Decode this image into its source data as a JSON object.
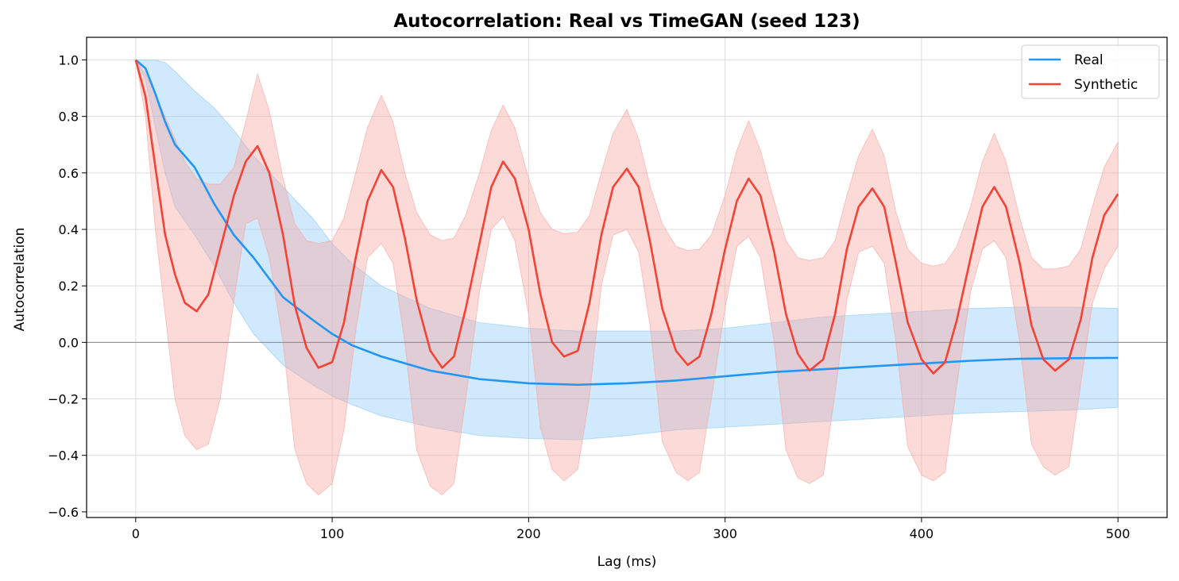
{
  "chart_data": {
    "type": "line",
    "title": "Autocorrelation: Real vs TimeGAN (seed 123)",
    "xlabel": "Lag (ms)",
    "ylabel": "Autocorrelation",
    "xlim": [
      -25,
      525
    ],
    "ylim": [
      -0.62,
      1.08
    ],
    "xticks": [
      0,
      100,
      200,
      300,
      400,
      500
    ],
    "yticks": [
      -0.6,
      -0.4,
      -0.2,
      0.0,
      0.2,
      0.4,
      0.6,
      0.8,
      1.0
    ],
    "xtick_labels": [
      "0",
      "100",
      "200",
      "300",
      "400",
      "500"
    ],
    "ytick_labels": [
      "−0.6",
      "−0.4",
      "−0.2",
      "0.0",
      "0.2",
      "0.4",
      "0.6",
      "0.8",
      "1.0"
    ],
    "grid": true,
    "legend_position": "top-right",
    "reference_line_y": 0,
    "series": [
      {
        "name": "Real",
        "color": "#2196F3",
        "band_color": "#90CAF9",
        "x": [
          0,
          5,
          10,
          15,
          20,
          30,
          40,
          50,
          60,
          75,
          90,
          100,
          110,
          125,
          150,
          175,
          200,
          225,
          250,
          275,
          300,
          325,
          350,
          375,
          400,
          425,
          450,
          475,
          500
        ],
        "y": [
          1.0,
          0.97,
          0.88,
          0.78,
          0.7,
          0.62,
          0.49,
          0.38,
          0.3,
          0.16,
          0.08,
          0.03,
          -0.01,
          -0.05,
          -0.1,
          -0.13,
          -0.145,
          -0.15,
          -0.145,
          -0.135,
          -0.12,
          -0.105,
          -0.095,
          -0.085,
          -0.075,
          -0.065,
          -0.058,
          -0.056,
          -0.055
        ],
        "upper": [
          1.0,
          1.0,
          1.0,
          0.99,
          0.96,
          0.89,
          0.83,
          0.75,
          0.66,
          0.55,
          0.44,
          0.35,
          0.28,
          0.2,
          0.12,
          0.07,
          0.05,
          0.04,
          0.04,
          0.04,
          0.05,
          0.07,
          0.09,
          0.1,
          0.11,
          0.12,
          0.125,
          0.125,
          0.12
        ],
        "lower": [
          1.0,
          0.93,
          0.76,
          0.6,
          0.48,
          0.38,
          0.27,
          0.14,
          0.03,
          -0.08,
          -0.15,
          -0.19,
          -0.22,
          -0.26,
          -0.3,
          -0.33,
          -0.34,
          -0.345,
          -0.33,
          -0.31,
          -0.3,
          -0.29,
          -0.28,
          -0.27,
          -0.26,
          -0.25,
          -0.245,
          -0.24,
          -0.23
        ]
      },
      {
        "name": "Synthetic",
        "color": "#F44336",
        "band_color": "#F8A6A0",
        "x": [
          0,
          5,
          10,
          15,
          20,
          25,
          31,
          37,
          43,
          50,
          56,
          62,
          68,
          75,
          81,
          87,
          93,
          100,
          106,
          112,
          118,
          125,
          131,
          137,
          143,
          150,
          156,
          162,
          168,
          175,
          181,
          187,
          193,
          200,
          206,
          212,
          218,
          225,
          231,
          237,
          243,
          250,
          256,
          262,
          268,
          275,
          281,
          287,
          293,
          300,
          306,
          312,
          318,
          325,
          331,
          337,
          343,
          350,
          356,
          362,
          368,
          375,
          381,
          387,
          393,
          400,
          406,
          412,
          418,
          425,
          431,
          437,
          443,
          450,
          456,
          462,
          468,
          475,
          481,
          487,
          493,
          500
        ],
        "y": [
          1.0,
          0.87,
          0.62,
          0.38,
          0.24,
          0.14,
          0.11,
          0.17,
          0.33,
          0.52,
          0.64,
          0.695,
          0.6,
          0.38,
          0.13,
          -0.02,
          -0.09,
          -0.07,
          0.07,
          0.3,
          0.5,
          0.61,
          0.55,
          0.37,
          0.15,
          -0.03,
          -0.09,
          -0.05,
          0.12,
          0.35,
          0.55,
          0.64,
          0.58,
          0.4,
          0.17,
          0.0,
          -0.05,
          -0.03,
          0.14,
          0.38,
          0.55,
          0.615,
          0.55,
          0.35,
          0.12,
          -0.03,
          -0.08,
          -0.05,
          0.1,
          0.33,
          0.5,
          0.58,
          0.52,
          0.32,
          0.1,
          -0.04,
          -0.1,
          -0.06,
          0.1,
          0.33,
          0.48,
          0.545,
          0.48,
          0.28,
          0.07,
          -0.06,
          -0.11,
          -0.07,
          0.08,
          0.3,
          0.48,
          0.55,
          0.48,
          0.28,
          0.06,
          -0.06,
          -0.1,
          -0.06,
          0.08,
          0.3,
          0.45,
          0.525
        ],
        "upper": [
          1.0,
          0.95,
          0.88,
          0.8,
          0.72,
          0.64,
          0.58,
          0.56,
          0.56,
          0.62,
          0.78,
          0.95,
          0.82,
          0.58,
          0.42,
          0.36,
          0.35,
          0.36,
          0.44,
          0.6,
          0.76,
          0.875,
          0.78,
          0.6,
          0.46,
          0.38,
          0.36,
          0.37,
          0.45,
          0.6,
          0.75,
          0.84,
          0.76,
          0.58,
          0.46,
          0.4,
          0.385,
          0.39,
          0.45,
          0.6,
          0.74,
          0.825,
          0.72,
          0.55,
          0.42,
          0.34,
          0.325,
          0.33,
          0.38,
          0.52,
          0.68,
          0.785,
          0.68,
          0.5,
          0.36,
          0.3,
          0.29,
          0.3,
          0.36,
          0.52,
          0.66,
          0.755,
          0.66,
          0.46,
          0.33,
          0.28,
          0.27,
          0.28,
          0.34,
          0.48,
          0.64,
          0.74,
          0.64,
          0.44,
          0.3,
          0.26,
          0.26,
          0.27,
          0.33,
          0.48,
          0.62,
          0.71
        ],
        "lower": [
          1.0,
          0.8,
          0.4,
          0.1,
          -0.2,
          -0.33,
          -0.38,
          -0.36,
          -0.2,
          0.15,
          0.42,
          0.44,
          0.3,
          0.0,
          -0.38,
          -0.5,
          -0.54,
          -0.5,
          -0.31,
          0.04,
          0.3,
          0.35,
          0.28,
          0.0,
          -0.38,
          -0.51,
          -0.54,
          -0.5,
          -0.2,
          0.18,
          0.4,
          0.445,
          0.36,
          0.1,
          -0.3,
          -0.45,
          -0.49,
          -0.45,
          -0.19,
          0.2,
          0.38,
          0.4,
          0.32,
          0.05,
          -0.35,
          -0.46,
          -0.49,
          -0.46,
          -0.2,
          0.12,
          0.34,
          0.375,
          0.3,
          0.0,
          -0.38,
          -0.48,
          -0.5,
          -0.47,
          -0.18,
          0.15,
          0.32,
          0.34,
          0.28,
          0.0,
          -0.37,
          -0.47,
          -0.49,
          -0.46,
          -0.15,
          0.18,
          0.33,
          0.36,
          0.3,
          0.0,
          -0.36,
          -0.44,
          -0.47,
          -0.44,
          -0.15,
          0.14,
          0.26,
          0.34
        ]
      }
    ]
  }
}
